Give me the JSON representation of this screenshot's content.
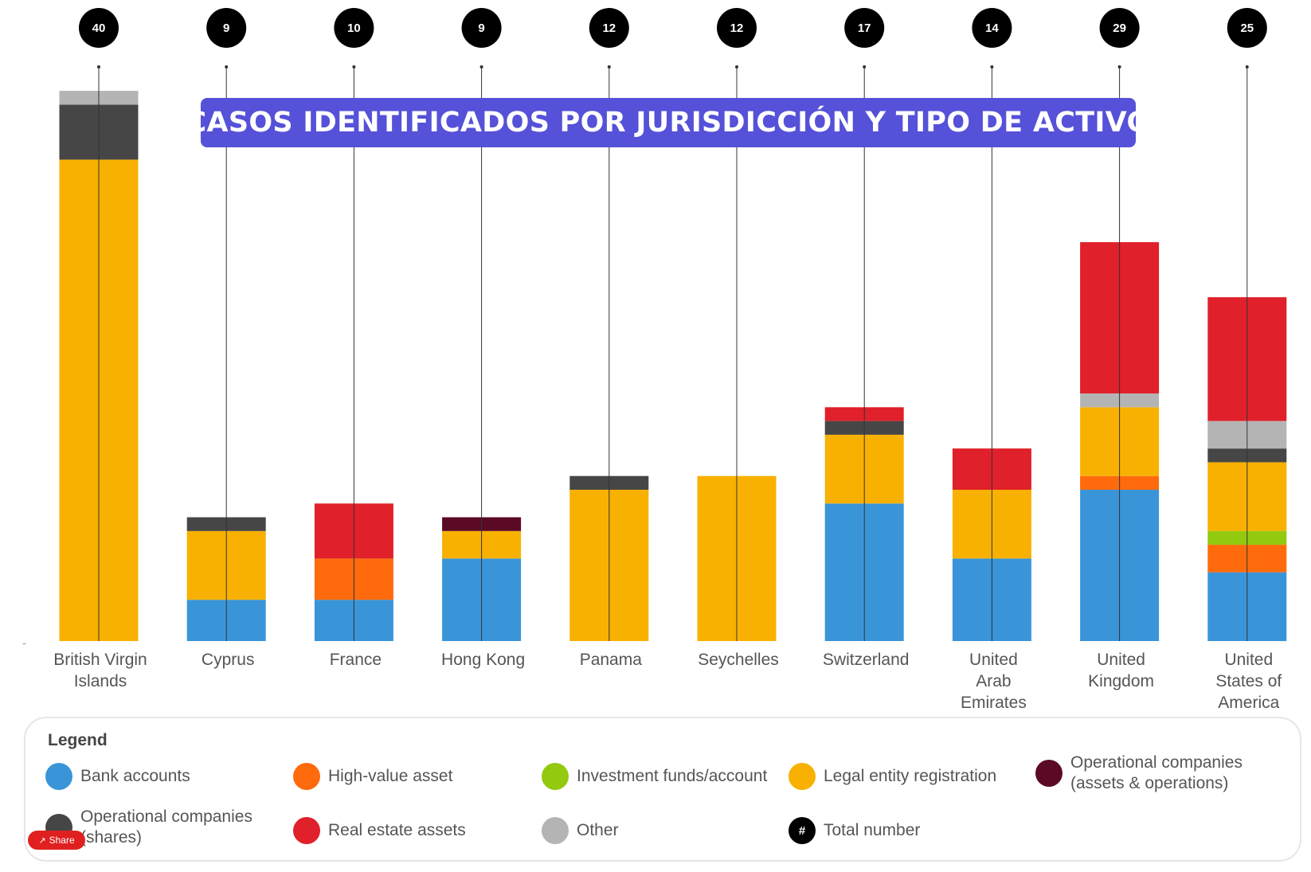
{
  "title": "CASOS IDENTIFICADOS POR JURISDICCIÓN Y TIPO DE ACTIVO",
  "colors": {
    "Bank accounts": "#3a95d8",
    "High-value asset": "#ff6a0d",
    "Investment funds/account": "#93c90e",
    "Legal entity registration": "#f8b100",
    "Operational companies (assets & operations)": "#5b0a25",
    "Operational companies (shares)": "#464646",
    "Real estate assets": "#e0202a",
    "Other": "#b4b4b4",
    "Total number": "#000000"
  },
  "chart_data": {
    "type": "bar",
    "stacked": true,
    "categories": [
      "British Virgin Islands",
      "Cyprus",
      "France",
      "Hong Kong",
      "Panama",
      "Seychelles",
      "Switzerland",
      "United Arab Emirates",
      "United Kingdom",
      "United States of America"
    ],
    "category_labels": [
      [
        "British Virgin",
        "Islands"
      ],
      [
        "Cyprus"
      ],
      [
        "France"
      ],
      [
        "Hong Kong"
      ],
      [
        "Panama"
      ],
      [
        "Seychelles"
      ],
      [
        "Switzerland"
      ],
      [
        "United",
        "Arab",
        "Emirates"
      ],
      [
        "United",
        "Kingdom"
      ],
      [
        "United",
        "States of",
        "America"
      ]
    ],
    "totals": [
      40,
      9,
      10,
      9,
      12,
      12,
      17,
      14,
      29,
      25
    ],
    "series": [
      {
        "name": "Bank accounts",
        "values": [
          0,
          3,
          3,
          6,
          0,
          0,
          10,
          6,
          11,
          5
        ]
      },
      {
        "name": "High-value asset",
        "values": [
          0,
          0,
          3,
          0,
          0,
          0,
          0,
          0,
          1,
          2
        ]
      },
      {
        "name": "Investment funds/account",
        "values": [
          0,
          0,
          0,
          0,
          0,
          0,
          0,
          0,
          0,
          1
        ]
      },
      {
        "name": "Legal entity registration",
        "values": [
          35,
          5,
          0,
          2,
          11,
          12,
          5,
          5,
          5,
          5
        ]
      },
      {
        "name": "Operational companies (assets & operations)",
        "values": [
          0,
          0,
          0,
          1,
          0,
          0,
          0,
          0,
          0,
          0
        ]
      },
      {
        "name": "Operational companies (shares)",
        "values": [
          4,
          1,
          0,
          0,
          1,
          0,
          1,
          0,
          0,
          1
        ]
      },
      {
        "name": "Other",
        "values": [
          1,
          0,
          0,
          0,
          0,
          0,
          0,
          0,
          1,
          2
        ]
      },
      {
        "name": "Real estate assets",
        "values": [
          0,
          0,
          4,
          0,
          0,
          0,
          1,
          3,
          11,
          9
        ]
      }
    ],
    "stack_order": [
      "Bank accounts",
      "High-value asset",
      "Investment funds/account",
      "Legal entity registration",
      "Operational companies (assets & operations)",
      "Operational companies (shares)",
      "Other",
      "Real estate assets"
    ],
    "ylim": [
      0,
      40
    ],
    "grid": false,
    "legend_position": "bottom"
  },
  "legend": {
    "title": "Legend",
    "items": [
      {
        "label": "Bank accounts",
        "color": "#3a95d8",
        "icon": "circle-swatch"
      },
      {
        "label": "High-value asset",
        "color": "#ff6a0d",
        "icon": "circle-swatch"
      },
      {
        "label": "Investment funds/account",
        "color": "#93c90e",
        "icon": "circle-swatch"
      },
      {
        "label": "Legal entity registration",
        "color": "#f8b100",
        "icon": "circle-swatch"
      },
      {
        "label": "Operational companies\n(assets & operations)",
        "color": "#5b0a25",
        "icon": "circle-swatch"
      },
      {
        "label": "Operational companies\n(shares)",
        "color": "#464646",
        "icon": "circle-swatch"
      },
      {
        "label": "Real estate assets",
        "color": "#e0202a",
        "icon": "circle-swatch"
      },
      {
        "label": "Other",
        "color": "#b4b4b4",
        "icon": "circle-swatch"
      },
      {
        "label": "Total number",
        "color": "#000000",
        "icon": "hash-circle",
        "symbol": "#"
      }
    ]
  },
  "share": {
    "label": "Share",
    "icon": "share-icon"
  }
}
